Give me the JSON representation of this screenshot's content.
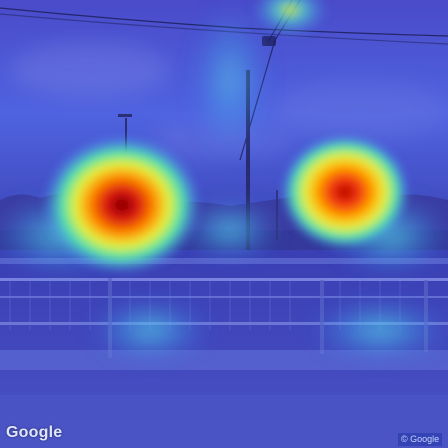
{
  "image": {
    "watermark_logo": "Google",
    "copyright": "© Google"
  },
  "overlay": {
    "type": "attention heatmap",
    "colormap": "jet",
    "hotspots": [
      {
        "intensity": 1.0
      },
      {
        "intensity": 0.85
      }
    ]
  }
}
